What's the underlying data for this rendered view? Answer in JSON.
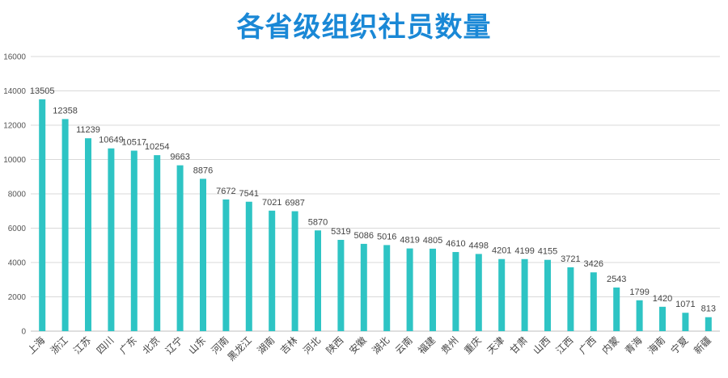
{
  "chart_data": {
    "type": "bar",
    "title": "各省级组织社员数量",
    "categories": [
      "上海",
      "浙江",
      "江苏",
      "四川",
      "广东",
      "北京",
      "辽宁",
      "山东",
      "河南",
      "黑龙江",
      "湖南",
      "吉林",
      "河北",
      "陕西",
      "安徽",
      "湖北",
      "云南",
      "福建",
      "贵州",
      "重庆",
      "天津",
      "甘肃",
      "山西",
      "江西",
      "广西",
      "内蒙",
      "青海",
      "海南",
      "宁夏",
      "新疆"
    ],
    "values": [
      13505,
      12358,
      11239,
      10649,
      10517,
      10254,
      9663,
      8876,
      7672,
      7541,
      7021,
      6987,
      5870,
      5319,
      5086,
      5016,
      4819,
      4805,
      4610,
      4498,
      4201,
      4199,
      4155,
      3721,
      3426,
      2543,
      1799,
      1420,
      1071,
      813
    ],
    "ylim": [
      0,
      16000
    ],
    "yticks": [
      0,
      2000,
      4000,
      6000,
      8000,
      10000,
      12000,
      14000,
      16000
    ],
    "grid": true,
    "bar_color": "#2ec4c4",
    "title_color": "#1a88d6"
  }
}
